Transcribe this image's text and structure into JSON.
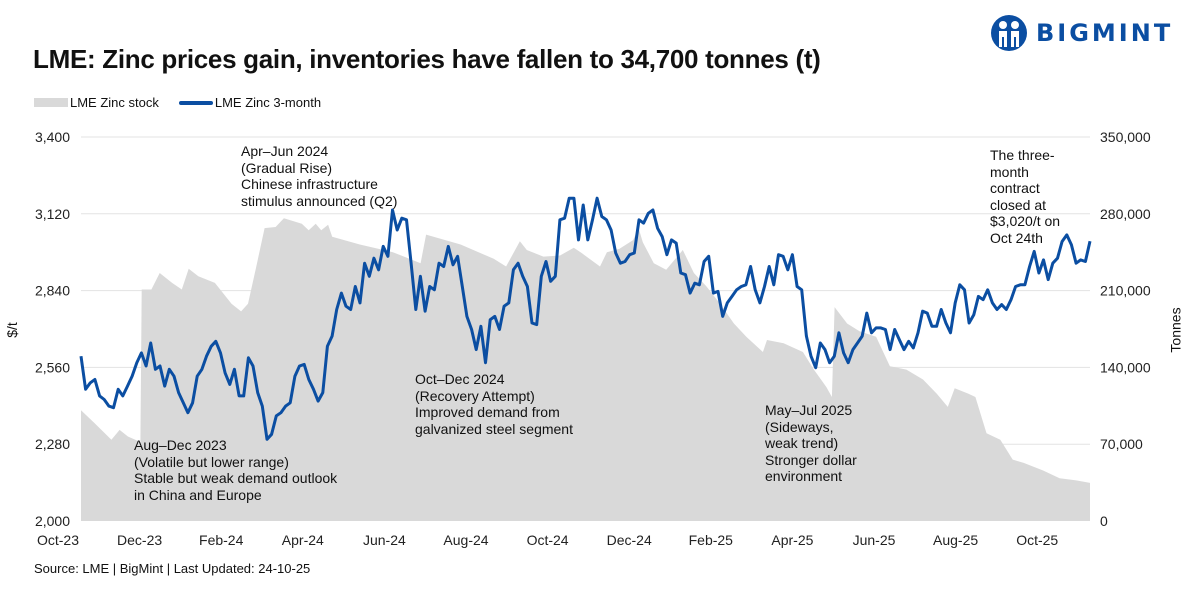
{
  "title": "LME: Zinc prices gain, inventories have fallen to 34,700 tonnes (t)",
  "logo": {
    "text": "BIGMINT",
    "color": "#0b4ea2"
  },
  "legend": {
    "stock": "LME Zinc stock",
    "price": "LME Zinc 3-month"
  },
  "source": "Source: LME | BigMint | Last Updated: 24-10-25",
  "annotations": {
    "aug_dec_2023": [
      "Aug–Dec 2023",
      "(Volatile but lower range)",
      "Stable but weak demand outlook",
      "in China and Europe"
    ],
    "apr_jun_2024": [
      "Apr–Jun 2024",
      "(Gradual Rise)",
      "Chinese infrastructure",
      "stimulus announced (Q2)"
    ],
    "oct_dec_2024": [
      "Oct–Dec 2024",
      "(Recovery Attempt)",
      "Improved demand from",
      "galvanized steel segment"
    ],
    "may_jul_2025": [
      "May–Jul 2025",
      "(Sideways,",
      "weak trend)",
      "Stronger dollar",
      "environment"
    ],
    "close": [
      "The three-",
      "month",
      "contract",
      "closed at",
      "$3,020/t on",
      "Oct 24th"
    ]
  },
  "chart_data": {
    "type": "line+area",
    "title": "LME: Zinc prices gain, inventories have fallen to 34,700 tonnes (t)",
    "x_range": [
      "2023-10-24",
      "2025-10-24"
    ],
    "x_tick_labels": [
      "Oct-23",
      "Dec-23",
      "Feb-24",
      "Apr-24",
      "Jun-24",
      "Aug-24",
      "Oct-24",
      "Dec-24",
      "Feb-25",
      "Apr-25",
      "Jun-25",
      "Aug-25",
      "Oct-25"
    ],
    "y_left": {
      "label": "$/t",
      "range": [
        2000,
        3400
      ],
      "ticks": [
        "2,000",
        "2,280",
        "2,560",
        "2,840",
        "3,120",
        "3,400"
      ]
    },
    "y_right": {
      "label": "Tonnes",
      "range": [
        0,
        350000
      ],
      "ticks": [
        "0",
        "70,000",
        "140,000",
        "210,000",
        "280,000",
        "350,000"
      ]
    },
    "grid": true,
    "legend_position": "top-left",
    "colors": {
      "price": "#0b4ea2",
      "stock": "#d9d9d9",
      "grid": "#e3e3e3"
    },
    "series": [
      {
        "name": "LME Zinc 3-month",
        "axis": "left",
        "kind": "line",
        "note_spacing": "evenly spaced from 2023-10-24 to 2025-10-24",
        "values": [
          2601,
          2480,
          2504,
          2516,
          2456,
          2443,
          2419,
          2413,
          2480,
          2456,
          2492,
          2528,
          2577,
          2613,
          2565,
          2649,
          2553,
          2565,
          2492,
          2553,
          2528,
          2468,
          2431,
          2395,
          2431,
          2528,
          2553,
          2601,
          2637,
          2655,
          2613,
          2540,
          2498,
          2553,
          2456,
          2456,
          2595,
          2565,
          2468,
          2419,
          2298,
          2316,
          2383,
          2395,
          2419,
          2431,
          2528,
          2565,
          2571,
          2516,
          2480,
          2437,
          2468,
          2637,
          2674,
          2771,
          2831,
          2783,
          2771,
          2855,
          2795,
          2940,
          2892,
          2958,
          2916,
          3001,
          2965,
          3134,
          3061,
          3104,
          3098,
          2940,
          2771,
          2892,
          2765,
          2855,
          2843,
          2940,
          2928,
          3001,
          2934,
          2965,
          2855,
          2746,
          2698,
          2625,
          2710,
          2577,
          2734,
          2746,
          2698,
          2783,
          2795,
          2916,
          2940,
          2892,
          2855,
          2722,
          2716,
          2892,
          2946,
          2874,
          2892,
          3098,
          3104,
          3177,
          3177,
          3025,
          3152,
          3025,
          3098,
          3177,
          3110,
          3098,
          3061,
          2977,
          2940,
          2946,
          2971,
          2977,
          3098,
          3086,
          3122,
          3134,
          3067,
          3037,
          2971,
          3025,
          3013,
          2904,
          2898,
          2831,
          2867,
          2861,
          2946,
          2965,
          2831,
          2837,
          2746,
          2795,
          2819,
          2843,
          2855,
          2861,
          2928,
          2843,
          2795,
          2855,
          2928,
          2861,
          2971,
          2965,
          2916,
          2971,
          2855,
          2843,
          2674,
          2601,
          2559,
          2649,
          2625,
          2577,
          2601,
          2686,
          2613,
          2577,
          2625,
          2649,
          2674,
          2758,
          2686,
          2704,
          2704,
          2698,
          2625,
          2698,
          2661,
          2625,
          2655,
          2631,
          2686,
          2765,
          2758,
          2710,
          2710,
          2771,
          2722,
          2686,
          2795,
          2861,
          2843,
          2722,
          2752,
          2819,
          2807,
          2843,
          2795,
          2771,
          2789,
          2771,
          2807,
          2855,
          2861,
          2861,
          2928,
          2983,
          2904,
          2952,
          2880,
          2940,
          2958,
          3019,
          3043,
          3007,
          2940,
          2952,
          2946,
          3020
        ]
      },
      {
        "name": "LME Zinc stock",
        "axis": "right",
        "kind": "area",
        "points": [
          [
            "2023-10-24",
            101000
          ],
          [
            "2023-11-03",
            89000
          ],
          [
            "2023-11-15",
            74000
          ],
          [
            "2023-11-21",
            83000
          ],
          [
            "2023-11-27",
            77000
          ],
          [
            "2023-12-06",
            72000
          ],
          [
            "2023-12-07",
            211000
          ],
          [
            "2023-12-14",
            211000
          ],
          [
            "2023-12-20",
            226000
          ],
          [
            "2023-12-29",
            217000
          ],
          [
            "2024-01-05",
            211000
          ],
          [
            "2024-01-10",
            230000
          ],
          [
            "2024-01-17",
            223000
          ],
          [
            "2024-01-29",
            217000
          ],
          [
            "2024-02-10",
            198000
          ],
          [
            "2024-02-17",
            191000
          ],
          [
            "2024-02-22",
            198000
          ],
          [
            "2024-02-28",
            232000
          ],
          [
            "2024-03-05",
            267000
          ],
          [
            "2024-03-13",
            268000
          ],
          [
            "2024-03-19",
            276000
          ],
          [
            "2024-04-01",
            271000
          ],
          [
            "2024-04-06",
            265000
          ],
          [
            "2024-04-11",
            271000
          ],
          [
            "2024-04-15",
            265000
          ],
          [
            "2024-04-20",
            270000
          ],
          [
            "2024-04-23",
            259000
          ],
          [
            "2024-05-13",
            252000
          ],
          [
            "2024-06-06",
            245000
          ],
          [
            "2024-06-26",
            235000
          ],
          [
            "2024-06-30",
            261000
          ],
          [
            "2024-07-25",
            252000
          ],
          [
            "2024-08-18",
            239000
          ],
          [
            "2024-08-27",
            232000
          ],
          [
            "2024-09-06",
            255000
          ],
          [
            "2024-09-11",
            247000
          ],
          [
            "2024-09-23",
            241000
          ],
          [
            "2024-10-05",
            242000
          ],
          [
            "2024-10-15",
            249000
          ],
          [
            "2024-10-21",
            244000
          ],
          [
            "2024-11-03",
            232000
          ],
          [
            "2024-11-08",
            245000
          ],
          [
            "2024-11-17",
            248000
          ],
          [
            "2024-11-27",
            256000
          ],
          [
            "2024-12-01",
            267000
          ],
          [
            "2024-12-04",
            254000
          ],
          [
            "2024-12-12",
            235000
          ],
          [
            "2024-12-21",
            229000
          ],
          [
            "2025-01-02",
            247000
          ],
          [
            "2025-01-10",
            226000
          ],
          [
            "2025-01-19",
            214000
          ],
          [
            "2025-01-29",
            198000
          ],
          [
            "2025-02-08",
            180000
          ],
          [
            "2025-02-17",
            168000
          ],
          [
            "2025-03-01",
            154000
          ],
          [
            "2025-03-04",
            165000
          ],
          [
            "2025-03-16",
            162000
          ],
          [
            "2025-03-30",
            154000
          ],
          [
            "2025-04-07",
            138000
          ],
          [
            "2025-04-16",
            122000
          ],
          [
            "2025-04-20",
            113000
          ],
          [
            "2025-04-22",
            195000
          ],
          [
            "2025-05-01",
            180000
          ],
          [
            "2025-05-10",
            173000
          ],
          [
            "2025-05-22",
            168000
          ],
          [
            "2025-06-01",
            141000
          ],
          [
            "2025-06-13",
            138000
          ],
          [
            "2025-06-25",
            129000
          ],
          [
            "2025-07-05",
            116000
          ],
          [
            "2025-07-13",
            104000
          ],
          [
            "2025-07-18",
            121000
          ],
          [
            "2025-07-28",
            116000
          ],
          [
            "2025-08-02",
            113000
          ],
          [
            "2025-08-10",
            80000
          ],
          [
            "2025-08-20",
            74000
          ],
          [
            "2025-08-29",
            56000
          ],
          [
            "2025-09-06",
            53000
          ],
          [
            "2025-09-20",
            46000
          ],
          [
            "2025-10-02",
            39000
          ],
          [
            "2025-10-14",
            37000
          ],
          [
            "2025-10-24",
            34700
          ]
        ]
      }
    ]
  }
}
